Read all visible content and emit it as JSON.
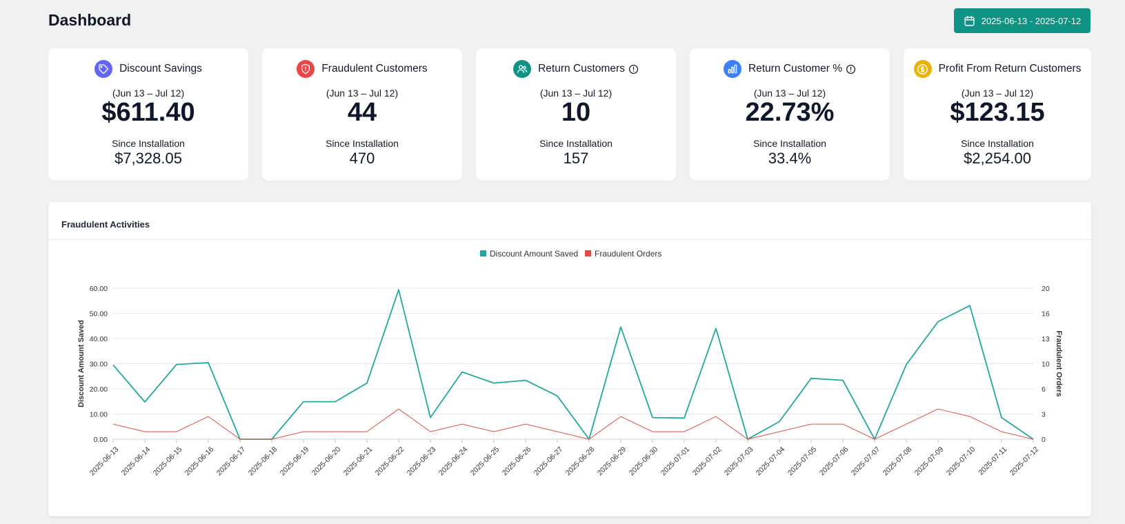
{
  "header": {
    "title": "Dashboard",
    "date_range_label": "2025-06-13 - 2025-07-12"
  },
  "cards": [
    {
      "title": "Discount Savings",
      "icon": "tag-icon",
      "icon_bg": "#6366f1",
      "has_info": false,
      "range": "(Jun 13 – Jul 12)",
      "value": "$611.40",
      "since_label": "Since Installation",
      "since_value": "$7,328.05"
    },
    {
      "title": "Fraudulent Customers",
      "icon": "shield-icon",
      "icon_bg": "#ef4444",
      "has_info": false,
      "range": "(Jun 13 – Jul 12)",
      "value": "44",
      "since_label": "Since Installation",
      "since_value": "470"
    },
    {
      "title": "Return Customers",
      "icon": "users-icon",
      "icon_bg": "#0e9384",
      "has_info": true,
      "range": "(Jun 13 – Jul 12)",
      "value": "10",
      "since_label": "Since Installation",
      "since_value": "157"
    },
    {
      "title": "Return Customer %",
      "icon": "bar-chart-icon",
      "icon_bg": "#3b82f6",
      "has_info": true,
      "range": "(Jun 13 – Jul 12)",
      "value": "22.73%",
      "since_label": "Since Installation",
      "since_value": "33.4%"
    },
    {
      "title": "Profit From Return Customers",
      "icon": "dollar-coin-icon",
      "icon_bg": "#eab308",
      "has_info": false,
      "range": "(Jun 13 – Jul 12)",
      "value": "$123.15",
      "since_label": "Since Installation",
      "since_value": "$2,254.00"
    }
  ],
  "chart_panel": {
    "title": "Fraudulent Activities"
  },
  "colors": {
    "accent": "#0e9384",
    "series_discount": "#20a99b",
    "series_fraud": "#e24b40"
  },
  "chart_data": {
    "type": "line",
    "categories": [
      "2025-06-13",
      "2025-06-14",
      "2025-06-15",
      "2025-06-16",
      "2025-06-17",
      "2025-06-18",
      "2025-06-19",
      "2025-06-20",
      "2025-06-21",
      "2025-06-22",
      "2025-06-23",
      "2025-06-24",
      "2025-06-25",
      "2025-06-26",
      "2025-06-27",
      "2025-06-28",
      "2025-06-29",
      "2025-06-30",
      "2025-07-01",
      "2025-07-02",
      "2025-07-03",
      "2025-07-04",
      "2025-07-05",
      "2025-07-06",
      "2025-07-07",
      "2025-07-08",
      "2025-07-09",
      "2025-07-10",
      "2025-07-11",
      "2025-07-12"
    ],
    "series": [
      {
        "name": "Discount Amount Saved",
        "axis": "left",
        "color": "#20a99b",
        "values": [
          29.5,
          14.8,
          29.7,
          30.4,
          0,
          0,
          14.9,
          14.9,
          22.3,
          59.4,
          8.6,
          26.7,
          22.3,
          23.4,
          17.2,
          0,
          44.6,
          8.6,
          8.4,
          44.0,
          0,
          7.0,
          24.2,
          23.4,
          0,
          29.7,
          46.7,
          53.1,
          8.6,
          0
        ]
      },
      {
        "name": "Fraudulent Orders",
        "axis": "right",
        "color": "#e24b40",
        "values": [
          2,
          1,
          1,
          3,
          0,
          0,
          1,
          1,
          1,
          4,
          1,
          2,
          1,
          2,
          1,
          0,
          3,
          1,
          1,
          3,
          0,
          1,
          2,
          2,
          0,
          2,
          4,
          3,
          1,
          0
        ]
      }
    ],
    "y_left": {
      "label": "Discount Amount Saved",
      "range": [
        0,
        60
      ],
      "ticks": [
        "0.00",
        "10.00",
        "20.00",
        "30.00",
        "40.00",
        "50.00",
        "60.00"
      ]
    },
    "y_right": {
      "label": "Fraudulent Orders",
      "range": [
        0,
        20
      ],
      "ticks": [
        "0",
        "3",
        "6",
        "10",
        "13",
        "16",
        "20"
      ]
    },
    "legend": [
      "Discount Amount Saved",
      "Fraudulent Orders"
    ],
    "legend_position": "top-center",
    "grid": true
  }
}
